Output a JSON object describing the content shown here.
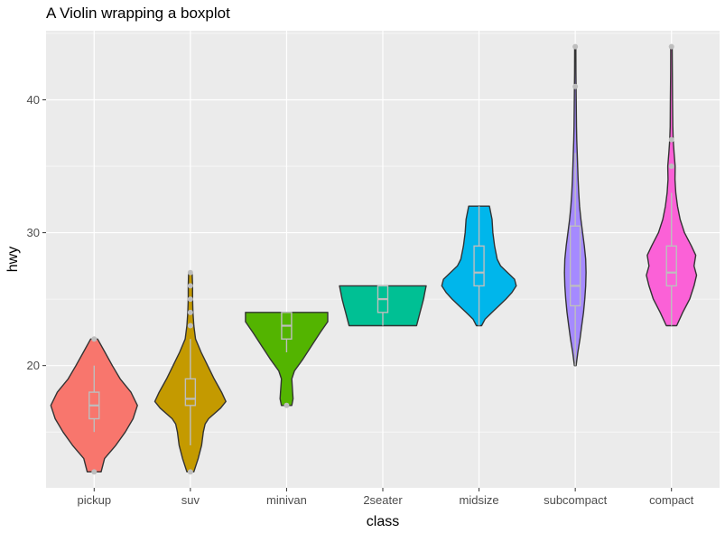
{
  "chart_data": {
    "type": "violin",
    "title": "A Violin wrapping a boxplot",
    "xlabel": "class",
    "ylabel": "hwy",
    "categories": [
      "pickup",
      "suv",
      "minivan",
      "2seater",
      "midsize",
      "subcompact",
      "compact"
    ],
    "ylim": [
      10.8,
      45.2
    ],
    "yticks": [
      20,
      30,
      40
    ],
    "grid": true,
    "legend": "none",
    "colors": {
      "pickup": "#F8766D",
      "suv": "#C49A00",
      "minivan": "#53B400",
      "2seater": "#00C094",
      "midsize": "#00B6EB",
      "subcompact": "#A58AFF",
      "compact": "#FB61D7",
      "panel": "#EBEBEB",
      "box": "#BEBEBE"
    },
    "violins": [
      {
        "class": "pickup",
        "min": 12,
        "max": 22,
        "profile": [
          [
            12,
            0.16
          ],
          [
            13,
            0.24
          ],
          [
            14,
            0.5
          ],
          [
            15,
            0.72
          ],
          [
            16,
            0.9
          ],
          [
            17,
            1.0
          ],
          [
            18,
            0.85
          ],
          [
            19,
            0.6
          ],
          [
            20,
            0.42
          ],
          [
            21,
            0.25
          ],
          [
            22,
            0.08
          ]
        ]
      },
      {
        "class": "suv",
        "min": 12,
        "max": 27,
        "profile": [
          [
            12,
            0.08
          ],
          [
            13,
            0.18
          ],
          [
            14,
            0.26
          ],
          [
            15,
            0.3
          ],
          [
            15.6,
            0.34
          ],
          [
            16,
            0.42
          ],
          [
            16.8,
            0.7
          ],
          [
            17.3,
            0.82
          ],
          [
            18,
            0.72
          ],
          [
            19,
            0.55
          ],
          [
            20,
            0.4
          ],
          [
            21,
            0.25
          ],
          [
            22,
            0.12
          ],
          [
            23,
            0.08
          ],
          [
            24,
            0.06
          ],
          [
            25,
            0.05
          ],
          [
            26,
            0.05
          ],
          [
            27,
            0.04
          ]
        ]
      },
      {
        "class": "minivan",
        "min": 17,
        "max": 24,
        "profile": [
          [
            17,
            0.12
          ],
          [
            17.5,
            0.15
          ],
          [
            18,
            0.14
          ],
          [
            19,
            0.12
          ],
          [
            19.6,
            0.18
          ],
          [
            20.5,
            0.38
          ],
          [
            21.5,
            0.58
          ],
          [
            22.5,
            0.78
          ],
          [
            23.3,
            0.95
          ],
          [
            24,
            0.95
          ]
        ]
      },
      {
        "class": "2seater",
        "min": 23,
        "max": 26,
        "profile": [
          [
            23,
            0.78
          ],
          [
            23.5,
            0.82
          ],
          [
            24,
            0.86
          ],
          [
            24.5,
            0.9
          ],
          [
            25,
            0.94
          ],
          [
            25.5,
            0.97
          ],
          [
            26,
            1.0
          ]
        ]
      },
      {
        "class": "midsize",
        "min": 23,
        "max": 32,
        "profile": [
          [
            23,
            0.06
          ],
          [
            23.5,
            0.14
          ],
          [
            24,
            0.3
          ],
          [
            24.5,
            0.46
          ],
          [
            25,
            0.62
          ],
          [
            25.5,
            0.76
          ],
          [
            26,
            0.86
          ],
          [
            26.5,
            0.82
          ],
          [
            27,
            0.66
          ],
          [
            27.5,
            0.5
          ],
          [
            28,
            0.42
          ],
          [
            29,
            0.36
          ],
          [
            30,
            0.32
          ],
          [
            31,
            0.3
          ],
          [
            32,
            0.24
          ]
        ]
      },
      {
        "class": "subcompact",
        "min": 20,
        "max": 44,
        "profile": [
          [
            20,
            0.02
          ],
          [
            21,
            0.06
          ],
          [
            22,
            0.11
          ],
          [
            23,
            0.15
          ],
          [
            24,
            0.19
          ],
          [
            25,
            0.22
          ],
          [
            26,
            0.24
          ],
          [
            27,
            0.25
          ],
          [
            28,
            0.24
          ],
          [
            29,
            0.21
          ],
          [
            30,
            0.17
          ],
          [
            31,
            0.13
          ],
          [
            32,
            0.1
          ],
          [
            33,
            0.08
          ],
          [
            34,
            0.065
          ],
          [
            35,
            0.055
          ],
          [
            36,
            0.045
          ],
          [
            37,
            0.035
          ],
          [
            38,
            0.028
          ],
          [
            40,
            0.022
          ],
          [
            42,
            0.016
          ],
          [
            44,
            0.014
          ]
        ]
      },
      {
        "class": "compact",
        "min": 23,
        "max": 44,
        "profile": [
          [
            23,
            0.12
          ],
          [
            24,
            0.26
          ],
          [
            25,
            0.42
          ],
          [
            26,
            0.52
          ],
          [
            26.8,
            0.58
          ],
          [
            27.5,
            0.52
          ],
          [
            28.3,
            0.56
          ],
          [
            29,
            0.46
          ],
          [
            30,
            0.3
          ],
          [
            31,
            0.2
          ],
          [
            32,
            0.14
          ],
          [
            33,
            0.1
          ],
          [
            34,
            0.08
          ],
          [
            35,
            0.085
          ],
          [
            36,
            0.06
          ],
          [
            37,
            0.04
          ],
          [
            38,
            0.03
          ],
          [
            40,
            0.025
          ],
          [
            42,
            0.02
          ],
          [
            44,
            0.016
          ]
        ]
      }
    ],
    "boxplots": [
      {
        "class": "pickup",
        "lower_whisker": 15,
        "q1": 16,
        "median": 17,
        "q3": 18,
        "upper_whisker": 20,
        "outliers": [
          12,
          22
        ]
      },
      {
        "class": "suv",
        "lower_whisker": 14,
        "q1": 17,
        "median": 17.5,
        "q3": 19,
        "upper_whisker": 22,
        "outliers": [
          12,
          23,
          24,
          25,
          26,
          27
        ]
      },
      {
        "class": "minivan",
        "lower_whisker": 21,
        "q1": 22,
        "median": 23,
        "q3": 24,
        "upper_whisker": 24,
        "outliers": [
          17
        ]
      },
      {
        "class": "2seater",
        "lower_whisker": 23,
        "q1": 24,
        "median": 25,
        "q3": 26,
        "upper_whisker": 26,
        "outliers": []
      },
      {
        "class": "midsize",
        "lower_whisker": 23,
        "q1": 26,
        "median": 27,
        "q3": 29,
        "upper_whisker": 32,
        "outliers": []
      },
      {
        "class": "subcompact",
        "lower_whisker": 20,
        "q1": 24.5,
        "median": 26,
        "q3": 30.5,
        "upper_whisker": 36,
        "outliers": [
          41,
          44
        ]
      },
      {
        "class": "compact",
        "lower_whisker": 23,
        "q1": 26,
        "median": 27,
        "q3": 29,
        "upper_whisker": 33,
        "outliers": [
          35,
          37,
          44
        ]
      }
    ]
  }
}
